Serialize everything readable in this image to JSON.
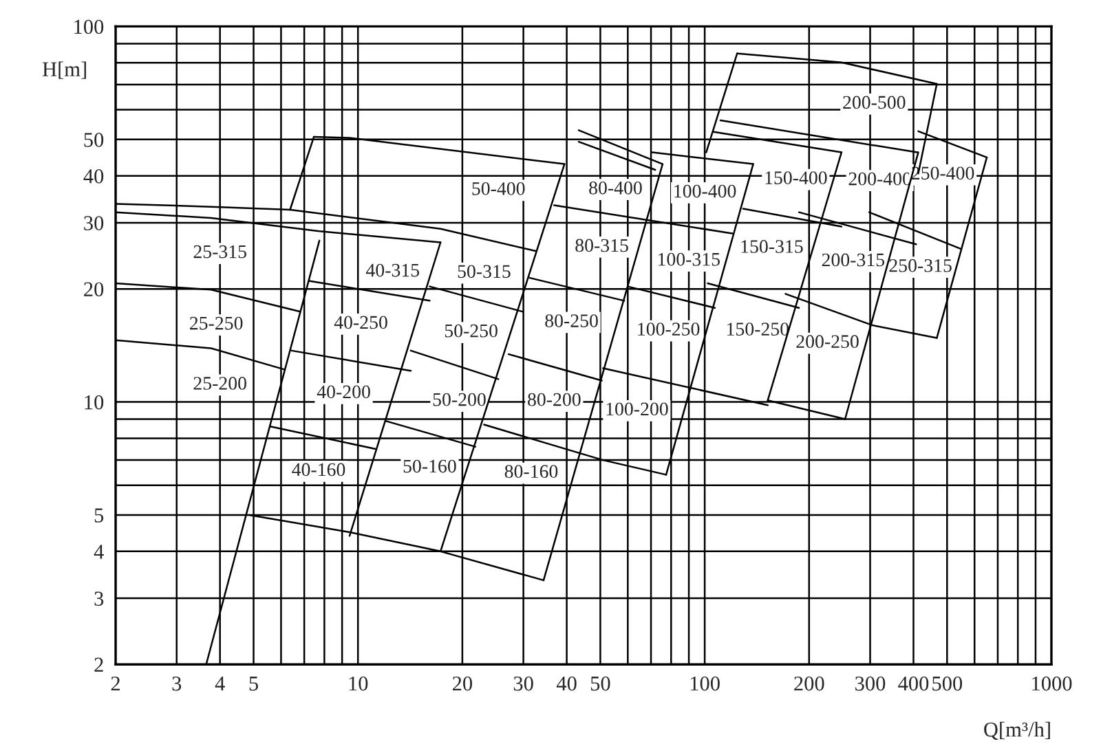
{
  "chart_data": {
    "type": "line",
    "xlabel": "Q[m³/h]",
    "ylabel": "H[m]",
    "log": "xy",
    "grid": true,
    "xlim": [
      2,
      1000
    ],
    "ylim": [
      2,
      100
    ],
    "xticks": [
      2,
      3,
      4,
      5,
      {
        "value": 6,
        "label": null
      },
      {
        "value": 7,
        "label": null
      },
      {
        "value": 8,
        "label": null
      },
      {
        "value": 9,
        "label": null
      },
      10,
      20,
      30,
      40,
      50,
      {
        "value": 60,
        "label": null
      },
      {
        "value": 70,
        "label": null
      },
      {
        "value": 80,
        "label": null
      },
      {
        "value": 90,
        "label": null
      },
      100,
      200,
      300,
      400,
      500,
      {
        "value": 600,
        "label": null
      },
      {
        "value": 700,
        "label": null
      },
      {
        "value": 800,
        "label": null
      },
      {
        "value": 900,
        "label": null
      },
      1000
    ],
    "yticks": [
      2,
      3,
      4,
      5,
      {
        "value": 6,
        "label": null
      },
      {
        "value": 7,
        "label": null
      },
      {
        "value": 8,
        "label": null
      },
      {
        "value": 9,
        "label": null
      },
      10,
      20,
      30,
      40,
      50,
      {
        "value": 60,
        "label": null
      },
      {
        "value": 70,
        "label": null
      },
      {
        "value": 80,
        "label": null
      },
      {
        "value": 90,
        "label": null
      },
      100
    ],
    "series": [
      {
        "color": "#000000",
        "x": [
          2,
          3.77,
          6.37,
          17.3,
          32.7
        ],
        "values": [
          33.7,
          33.1,
          32.5,
          28.9,
          25.2
        ]
      },
      {
        "color": "#000000",
        "x": [
          2,
          3.77,
          7.74,
          17.3
        ],
        "values": [
          32.0,
          30.9,
          28.5,
          26.6
        ]
      },
      {
        "color": "#000000",
        "x": [
          2,
          3.77,
          6.82
        ],
        "values": [
          20.7,
          19.9,
          17.4
        ]
      },
      {
        "color": "#000000",
        "x": [
          2,
          3.77,
          6.14
        ],
        "values": [
          14.6,
          13.9,
          12.2
        ]
      },
      {
        "color": "#000000",
        "x": [
          7.74,
          3.65
        ],
        "values": [
          26.9,
          2.0
        ]
      },
      {
        "color": "#000000",
        "x": [
          17.3,
          9.46
        ],
        "values": [
          26.6,
          4.4
        ]
      },
      {
        "color": "#000000",
        "x": [
          7.22,
          16.1
        ],
        "values": [
          21.0,
          18.6
        ]
      },
      {
        "color": "#000000",
        "x": [
          6.43,
          14.2
        ],
        "values": [
          13.7,
          12.1
        ]
      },
      {
        "color": "#000000",
        "x": [
          5.59,
          11.2
        ],
        "values": [
          8.6,
          7.5
        ]
      },
      {
        "color": "#000000",
        "x": [
          4.86,
          9.46,
          17.3,
          34.3
        ],
        "values": [
          5.0,
          4.5,
          4.0,
          3.35
        ]
      },
      {
        "color": "#000000",
        "x": [
          7.46,
          6.37
        ],
        "values": [
          50.8,
          32.5
        ]
      },
      {
        "color": "#000000",
        "x": [
          7.46,
          9.46,
          39.4
        ],
        "values": [
          50.8,
          50.5,
          43.0
        ]
      },
      {
        "color": "#000000",
        "x": [
          39.4,
          17.3
        ],
        "values": [
          43.0,
          4.0
        ]
      },
      {
        "color": "#000000",
        "x": [
          16.1,
          29.8
        ],
        "values": [
          20.3,
          17.4
        ]
      },
      {
        "color": "#000000",
        "x": [
          14.2,
          25.4
        ],
        "values": [
          13.7,
          11.5
        ]
      },
      {
        "color": "#000000",
        "x": [
          12.0,
          21.8
        ],
        "values": [
          8.9,
          7.6
        ]
      },
      {
        "color": "#000000",
        "x": [
          43.3,
          75.6
        ],
        "values": [
          52.9,
          43.0
        ]
      },
      {
        "color": "#000000",
        "x": [
          43.3,
          72
        ],
        "values": [
          49.3,
          41.5
        ]
      },
      {
        "color": "#000000",
        "x": [
          75.6,
          34.3
        ],
        "values": [
          43.0,
          3.35
        ]
      },
      {
        "color": "#000000",
        "x": [
          36.8,
          120
        ],
        "values": [
          33.4,
          28.1
        ]
      },
      {
        "color": "#000000",
        "x": [
          31.3,
          58.6
        ],
        "values": [
          21.4,
          18.6
        ]
      },
      {
        "color": "#000000",
        "x": [
          27.2,
          50.5
        ],
        "values": [
          13.4,
          11.4
        ]
      },
      {
        "color": "#000000",
        "x": [
          23.1,
          50.9,
          77.4
        ],
        "values": [
          8.7,
          7.0,
          6.4
        ]
      },
      {
        "color": "#000000",
        "x": [
          70.5,
          138
        ],
        "values": [
          46.2,
          43.0
        ]
      },
      {
        "color": "#000000",
        "x": [
          138,
          77.4
        ],
        "values": [
          43.0,
          6.4
        ]
      },
      {
        "color": "#000000",
        "x": [
          60,
          107
        ],
        "values": [
          20.3,
          17.8
        ]
      },
      {
        "color": "#000000",
        "x": [
          50.9,
          152
        ],
        "values": [
          12.3,
          9.8
        ]
      },
      {
        "color": "#000000",
        "x": [
          124,
          101
        ],
        "values": [
          84.7,
          46.2
        ]
      },
      {
        "color": "#000000",
        "x": [
          124,
          248,
          467
        ],
        "values": [
          84.7,
          80.2,
          70.3
        ]
      },
      {
        "color": "#000000",
        "x": [
          467,
          413
        ],
        "values": [
          70.3,
          40.6
        ]
      },
      {
        "color": "#000000",
        "x": [
          111,
          410
        ],
        "values": [
          56.2,
          46.2
        ]
      },
      {
        "color": "#000000",
        "x": [
          106,
          248
        ],
        "values": [
          52.4,
          46.2
        ]
      },
      {
        "color": "#000000",
        "x": [
          248,
          152
        ],
        "values": [
          46.2,
          10.1
        ]
      },
      {
        "color": "#000000",
        "x": [
          129,
          248
        ],
        "values": [
          32.7,
          29.3
        ]
      },
      {
        "color": "#000000",
        "x": [
          102,
          187
        ],
        "values": [
          20.7,
          17.8
        ]
      },
      {
        "color": "#000000",
        "x": [
          413,
          254
        ],
        "values": [
          46.2,
          9.0
        ]
      },
      {
        "color": "#000000",
        "x": [
          187,
          407
        ],
        "values": [
          32.0,
          26.3
        ]
      },
      {
        "color": "#000000",
        "x": [
          152,
          254
        ],
        "values": [
          10.1,
          9.0
        ]
      },
      {
        "color": "#000000",
        "x": [
          413,
          651
        ],
        "values": [
          52.6,
          44.8
        ]
      },
      {
        "color": "#000000",
        "x": [
          651,
          467
        ],
        "values": [
          44.8,
          14.8
        ]
      },
      {
        "color": "#000000",
        "x": [
          298,
          546
        ],
        "values": [
          32.0,
          25.6
        ]
      },
      {
        "color": "#000000",
        "x": [
          171,
          305,
          467
        ],
        "values": [
          19.4,
          16.0,
          14.8
        ]
      }
    ],
    "annotations": [
      {
        "text": "25-315",
        "x": 4.0,
        "y": 30.7
      },
      {
        "text": "25-250",
        "x": 3.9,
        "y": 19.8
      },
      {
        "text": "25-200",
        "x": 4.0,
        "y": 13.7
      },
      {
        "text": "40-315",
        "x": 12.6,
        "y": 27.4
      },
      {
        "text": "40-250",
        "x": 10.2,
        "y": 19.9
      },
      {
        "text": "40-200",
        "x": 9.1,
        "y": 13.0
      },
      {
        "text": "40-160",
        "x": 7.7,
        "y": 8.07
      },
      {
        "text": "50-400",
        "x": 25.4,
        "y": 45.2
      },
      {
        "text": "50-315",
        "x": 23.1,
        "y": 27.2
      },
      {
        "text": "50-250",
        "x": 21.2,
        "y": 18.9
      },
      {
        "text": "50-200",
        "x": 19.6,
        "y": 12.4
      },
      {
        "text": "50-160",
        "x": 16.1,
        "y": 8.24
      },
      {
        "text": "80-400",
        "x": 55.3,
        "y": 45.4
      },
      {
        "text": "80-315",
        "x": 50.5,
        "y": 31.9
      },
      {
        "text": "80-250",
        "x": 41.3,
        "y": 20.1
      },
      {
        "text": "80-200",
        "x": 36.8,
        "y": 12.4
      },
      {
        "text": "80-160",
        "x": 31.6,
        "y": 7.98
      },
      {
        "text": "100-400",
        "x": 100,
        "y": 44.5
      },
      {
        "text": "100-315",
        "x": 89.9,
        "y": 29.3
      },
      {
        "text": "100-250",
        "x": 78.5,
        "y": 19.1
      },
      {
        "text": "100-200",
        "x": 63.7,
        "y": 11.7
      },
      {
        "text": "150-400",
        "x": 183,
        "y": 48.3
      },
      {
        "text": "150-315",
        "x": 156,
        "y": 31.7
      },
      {
        "text": "150-250",
        "x": 142,
        "y": 19.1
      },
      {
        "text": "200-500",
        "x": 308,
        "y": 76.7
      },
      {
        "text": "200-400",
        "x": 320,
        "y": 48.0
      },
      {
        "text": "200-315",
        "x": 268,
        "y": 29.2
      },
      {
        "text": "200-250",
        "x": 226,
        "y": 17.7
      },
      {
        "text": "250-400",
        "x": 486,
        "y": 49.7
      },
      {
        "text": "250-315",
        "x": 419,
        "y": 28.2
      }
    ]
  }
}
